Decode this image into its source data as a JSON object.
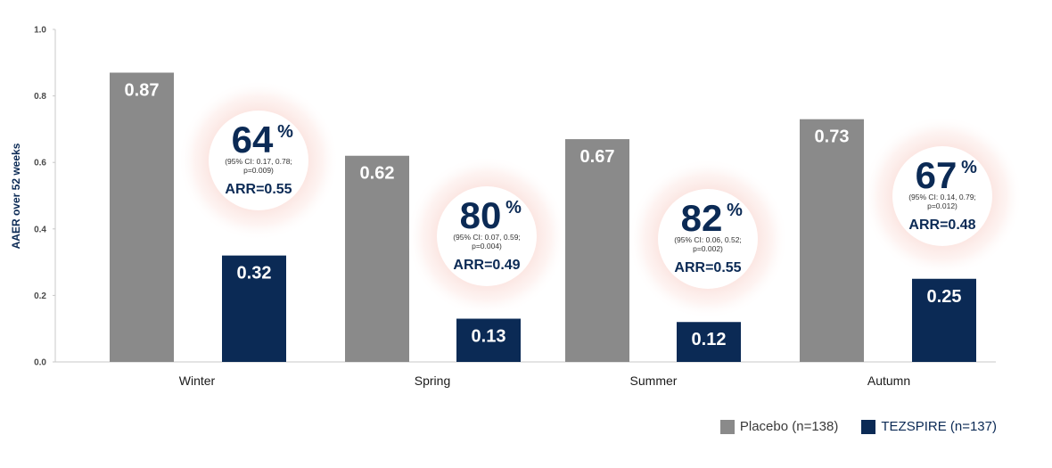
{
  "chart_data": {
    "type": "bar",
    "ylabel": "AAER over 52 weeks",
    "ylim": [
      0,
      1.0
    ],
    "yticks": [
      "0.0",
      "0.2",
      "0.4",
      "0.6",
      "0.8",
      "1.0"
    ],
    "ytick_values": [
      0,
      0.2,
      0.4,
      0.6,
      0.8,
      1.0
    ],
    "categories": [
      "Winter",
      "Spring",
      "Summer",
      "Autumn"
    ],
    "series": [
      {
        "name": "Placebo (n=138)",
        "color": "#8a8a8a",
        "values": [
          0.87,
          0.62,
          0.67,
          0.73
        ],
        "labels": [
          "0.87",
          "0.62",
          "0.67",
          "0.73"
        ]
      },
      {
        "name": "TEZSPIRE (n=137)",
        "color": "#0b2a55",
        "values": [
          0.32,
          0.13,
          0.12,
          0.25
        ],
        "labels": [
          "0.32",
          "0.13",
          "0.12",
          "0.25"
        ]
      }
    ],
    "annotations": [
      {
        "category": "Winter",
        "pct": "64",
        "sign": "%",
        "ci1": "(95% CI: 0.17, 0.78;",
        "ci2": "p=0.009)",
        "arr": "ARR=0.55"
      },
      {
        "category": "Spring",
        "pct": "80",
        "sign": "%",
        "ci1": "(95% CI: 0.07, 0.59;",
        "ci2": "p=0.004)",
        "arr": "ARR=0.49"
      },
      {
        "category": "Summer",
        "pct": "82",
        "sign": "%",
        "ci1": "(95% CI: 0.06, 0.52;",
        "ci2": "p=0.002)",
        "arr": "ARR=0.55"
      },
      {
        "category": "Autumn",
        "pct": "67",
        "sign": "%",
        "ci1": "(95% CI: 0.14, 0.79;",
        "ci2": "p=0.012)",
        "arr": "ARR=0.48"
      }
    ],
    "grid": false,
    "legend_position": "bottom-right"
  },
  "legend": {
    "placebo_label": "Placebo (n=138)",
    "placebo_color": "#8a8a8a",
    "tezspire_label": "TEZSPIRE (n=137)",
    "tezspire_color": "#0b2a55"
  }
}
